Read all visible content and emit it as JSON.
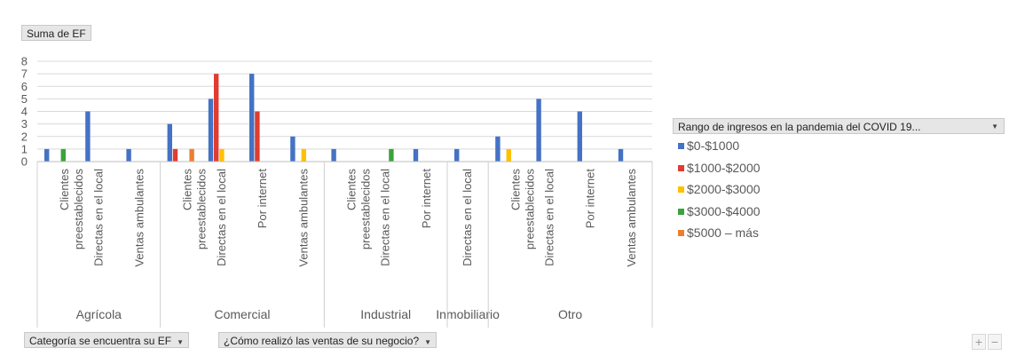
{
  "pivot": {
    "values_field": "Suma de EF",
    "axis_fields": [
      "Categoría se encuentra su EF",
      "¿Cómo realizó las ventas de su negocio?"
    ],
    "legend_field": "Rango de  ingresos en la pandemia del COVID 19..."
  },
  "zoom": {
    "plus": "+",
    "minus": "−"
  },
  "colors": [
    "#4472c4",
    "#e03c31",
    "#ffc000",
    "#3aa33a",
    "#ed7d31"
  ],
  "chart_data": {
    "type": "bar",
    "ylim": [
      0,
      8
    ],
    "yticks": [
      0,
      1,
      2,
      3,
      4,
      5,
      6,
      7,
      8
    ],
    "legend_position": "right",
    "groups": [
      {
        "name": "Agrícola",
        "categories": [
          {
            "label": [
              "Clientes",
              "preestablecidos"
            ],
            "values": [
              1,
              0,
              0,
              1,
              0
            ]
          },
          {
            "label": [
              "Directas en el local"
            ],
            "values": [
              4,
              0,
              0,
              0,
              0
            ]
          },
          {
            "label": [
              "Ventas ambulantes"
            ],
            "values": [
              1,
              0,
              0,
              0,
              0
            ]
          }
        ]
      },
      {
        "name": "Comercial",
        "categories": [
          {
            "label": [
              "Clientes",
              "preestablecidos"
            ],
            "values": [
              3,
              1,
              0,
              0,
              1
            ]
          },
          {
            "label": [
              "Directas en el local"
            ],
            "values": [
              5,
              7,
              1,
              0,
              0
            ]
          },
          {
            "label": [
              "Por internet"
            ],
            "values": [
              7,
              4,
              0,
              0,
              0
            ]
          },
          {
            "label": [
              "Ventas ambulantes"
            ],
            "values": [
              2,
              0,
              1,
              0,
              0
            ]
          }
        ]
      },
      {
        "name": "Industrial",
        "categories": [
          {
            "label": [
              "Clientes",
              "preestablecidos"
            ],
            "values": [
              1,
              0,
              0,
              0,
              0
            ]
          },
          {
            "label": [
              "Directas en el local"
            ],
            "values": [
              0,
              0,
              0,
              1,
              0
            ]
          },
          {
            "label": [
              "Por internet"
            ],
            "values": [
              1,
              0,
              0,
              0,
              0
            ]
          }
        ]
      },
      {
        "name": "Inmobiliario",
        "categories": [
          {
            "label": [
              "Directas en el local"
            ],
            "values": [
              1,
              0,
              0,
              0,
              0
            ]
          }
        ]
      },
      {
        "name": "Otro",
        "categories": [
          {
            "label": [
              "Clientes",
              "preestablecidos"
            ],
            "values": [
              2,
              0,
              1,
              0,
              0
            ]
          },
          {
            "label": [
              "Directas en el local"
            ],
            "values": [
              5,
              0,
              0,
              0,
              0
            ]
          },
          {
            "label": [
              "Por internet"
            ],
            "values": [
              4,
              0,
              0,
              0,
              0
            ]
          },
          {
            "label": [
              "Ventas ambulantes"
            ],
            "values": [
              1,
              0,
              0,
              0,
              0
            ]
          }
        ]
      }
    ],
    "series": [
      {
        "name": "$0-$1000"
      },
      {
        "name": "$1000-$2000"
      },
      {
        "name": "$2000-$3000"
      },
      {
        "name": "$3000-$4000"
      },
      {
        "name": "$5000 – más"
      }
    ]
  }
}
